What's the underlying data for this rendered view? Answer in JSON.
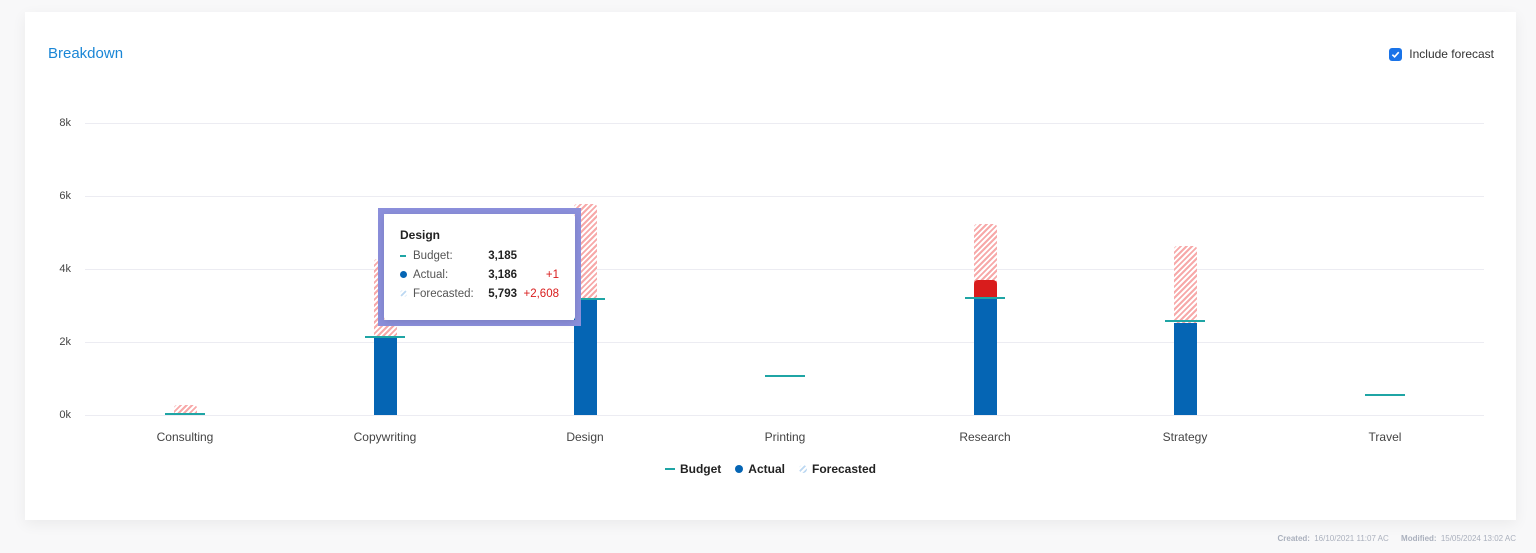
{
  "card": {
    "title": "Breakdown",
    "include_forecast_label": "Include forecast",
    "include_forecast_checked": true
  },
  "chart_data": {
    "type": "bar",
    "title": "Breakdown",
    "xlabel": "",
    "ylabel": "",
    "ylim": [
      0,
      8000
    ],
    "yticks": [
      "0k",
      "2k",
      "4k",
      "6k",
      "8k"
    ],
    "grid": true,
    "legend_position": "bottom",
    "categories": [
      "Consulting",
      "Copywriting",
      "Design",
      "Printing",
      "Research",
      "Strategy",
      "Travel"
    ],
    "series": [
      {
        "name": "Budget",
        "style": "line-marker",
        "color": "#1fa5a5",
        "values": [
          20,
          2150,
          3185,
          1070,
          3200,
          2570,
          550
        ]
      },
      {
        "name": "Actual",
        "style": "bar",
        "color": "#0565b4",
        "overspend_color": "#d91c1c",
        "values": [
          0,
          2100,
          3186,
          0,
          3700,
          2520,
          0
        ]
      },
      {
        "name": "Forecasted",
        "style": "hatched-bar",
        "color": "#f7a9a9",
        "values": [
          270,
          4270,
          5793,
          0,
          5230,
          4630,
          0
        ]
      }
    ],
    "tooltip": {
      "category": "Design",
      "rows": [
        {
          "label": "Budget:",
          "value": "3,185",
          "diff": ""
        },
        {
          "label": "Actual:",
          "value": "3,186",
          "diff": "+1"
        },
        {
          "label": "Forecasted:",
          "value": "5,793",
          "diff": "+2,608"
        }
      ]
    }
  },
  "legend": {
    "budget": "Budget",
    "actual": "Actual",
    "forecasted": "Forecasted"
  },
  "footer": {
    "created_label": "Created:",
    "created_value": "16/10/2021 11:07 AC",
    "modified_label": "Modified:",
    "modified_value": "15/05/2024 13:02 AC"
  }
}
